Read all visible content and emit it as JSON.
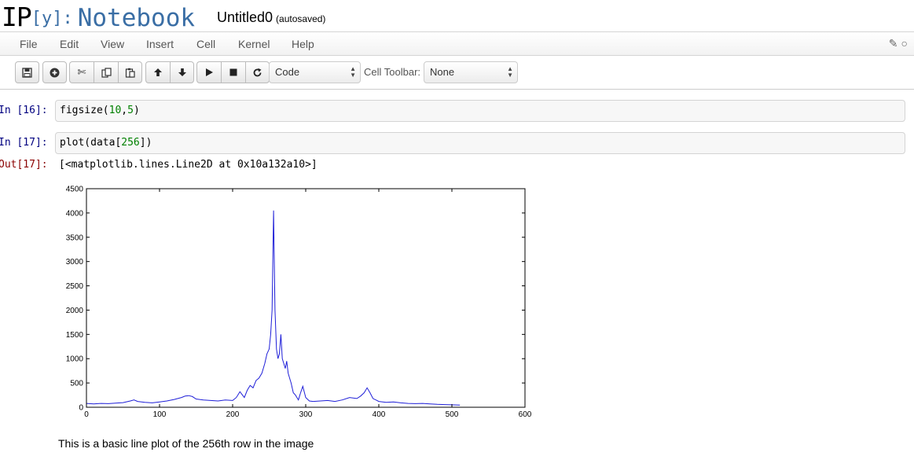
{
  "header": {
    "logo_ip": "IP",
    "logo_y": "[y]:",
    "logo_nb": "Notebook",
    "notebook_name": "Untitled0",
    "save_status": "(autosaved)"
  },
  "menubar": {
    "items": [
      "File",
      "Edit",
      "View",
      "Insert",
      "Cell",
      "Kernel",
      "Help"
    ],
    "right_icons": [
      "pencil-icon",
      "kernel-status-circle-icon"
    ]
  },
  "toolbar": {
    "buttons": [
      "save-icon",
      "add-cell-icon",
      "cut-icon",
      "copy-icon",
      "paste-icon",
      "move-up-icon",
      "move-down-icon",
      "run-icon",
      "stop-icon",
      "restart-icon"
    ],
    "cell_type": "Code",
    "cell_toolbar_label": "Cell Toolbar:",
    "cell_toolbar_value": "None"
  },
  "cells": {
    "cell1": {
      "prompt": "In [16]:",
      "code_pre": "figsize(",
      "arg1": "10",
      "comma": ",",
      "arg2": "5",
      "code_post": ")"
    },
    "cell2": {
      "prompt": "In [17]:",
      "code_pre": "plot(data[",
      "arg": "256",
      "code_post": "])",
      "out_prompt": "Out[17]:",
      "output": "[<matplotlib.lines.Line2D at 0x10a132a10>]"
    },
    "caption": "This is a basic line plot of the 256th row in the image"
  },
  "colors": {
    "line": "#1f1fd8",
    "in_prompt": "#000080",
    "out_prompt": "#8b0000",
    "logo_blue": "#3a6ea5"
  },
  "chart_data": {
    "type": "line",
    "title": "",
    "xlabel": "",
    "ylabel": "",
    "xlim": [
      0,
      600
    ],
    "ylim": [
      0,
      4500
    ],
    "xticks": [
      0,
      100,
      200,
      300,
      400,
      500,
      600
    ],
    "yticks": [
      0,
      500,
      1000,
      1500,
      2000,
      2500,
      3000,
      3500,
      4000,
      4500
    ],
    "grid": false,
    "series": [
      {
        "x": [
          0,
          10,
          20,
          30,
          40,
          50,
          60,
          65,
          70,
          80,
          90,
          100,
          110,
          120,
          130,
          135,
          140,
          145,
          150,
          160,
          170,
          180,
          190,
          200,
          205,
          210,
          213,
          216,
          220,
          224,
          228,
          232,
          236,
          240,
          244,
          247,
          250,
          252,
          254,
          256,
          258,
          260,
          262,
          264,
          266,
          268,
          270,
          272,
          274,
          276,
          278,
          280,
          283,
          286,
          290,
          293,
          296,
          300,
          305,
          310,
          320,
          330,
          340,
          350,
          360,
          370,
          375,
          380,
          384,
          388,
          392,
          396,
          400,
          410,
          420,
          430,
          440,
          450,
          460,
          470,
          480,
          490,
          500,
          511
        ],
        "y": [
          80,
          70,
          80,
          75,
          85,
          95,
          130,
          150,
          120,
          100,
          90,
          110,
          130,
          160,
          200,
          230,
          240,
          220,
          170,
          150,
          140,
          130,
          150,
          140,
          200,
          320,
          260,
          200,
          350,
          450,
          400,
          550,
          600,
          700,
          900,
          1100,
          1200,
          1500,
          2000,
          4050,
          2000,
          1200,
          1000,
          1100,
          1500,
          1000,
          900,
          800,
          950,
          700,
          600,
          500,
          300,
          250,
          150,
          300,
          430,
          200,
          130,
          120,
          130,
          140,
          120,
          150,
          200,
          180,
          230,
          300,
          400,
          300,
          180,
          150,
          120,
          100,
          110,
          90,
          80,
          75,
          80,
          70,
          60,
          55,
          50,
          45
        ]
      }
    ]
  }
}
